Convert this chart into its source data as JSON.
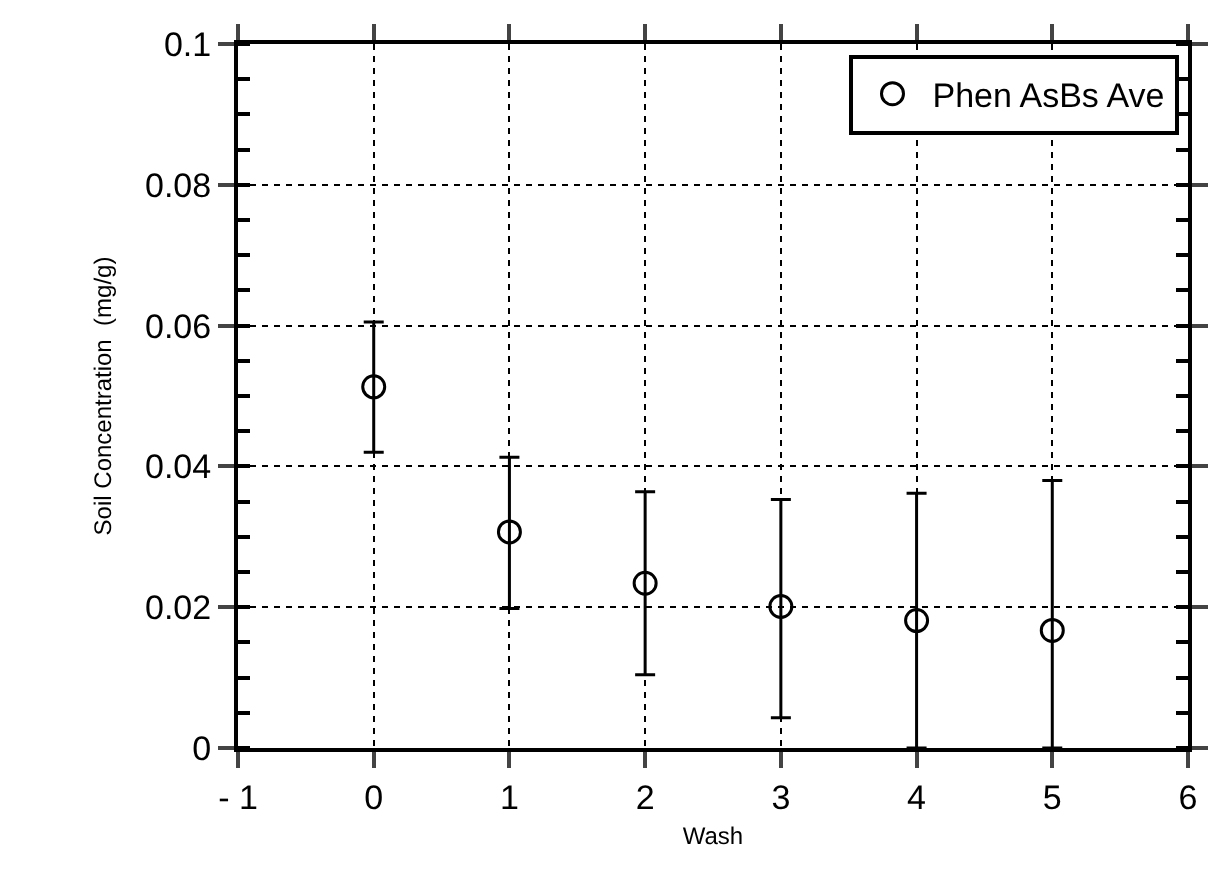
{
  "chart_data": {
    "type": "scatter",
    "xlabel": "Wash",
    "ylabel": "Soil Concentration  (mg/g)",
    "x": [
      0,
      1,
      2,
      3,
      4,
      5
    ],
    "series": [
      {
        "name": "Phen AsBs Ave",
        "color": "#000000",
        "values": [
          0.0513,
          0.0307,
          0.0234,
          0.0201,
          0.0181,
          0.0167
        ],
        "errors": [
          [
            0.042,
            0.0605
          ],
          [
            0.0198,
            0.0413
          ],
          [
            0.0104,
            0.0364
          ],
          [
            0.0043,
            0.0353
          ],
          [
            0,
            0.0362
          ],
          [
            0,
            0.038
          ]
        ]
      }
    ],
    "xlim": [
      -1,
      6
    ],
    "xticks": [
      {
        "value": -1,
        "label": "- 1"
      },
      0,
      1,
      2,
      3,
      4,
      5,
      6
    ],
    "ylim": [
      0,
      0.1
    ],
    "yticks": [
      0,
      0.02,
      0.04,
      0.06,
      0.08,
      0.1
    ],
    "grid": true,
    "legend": "top right",
    "marker": "circle"
  }
}
